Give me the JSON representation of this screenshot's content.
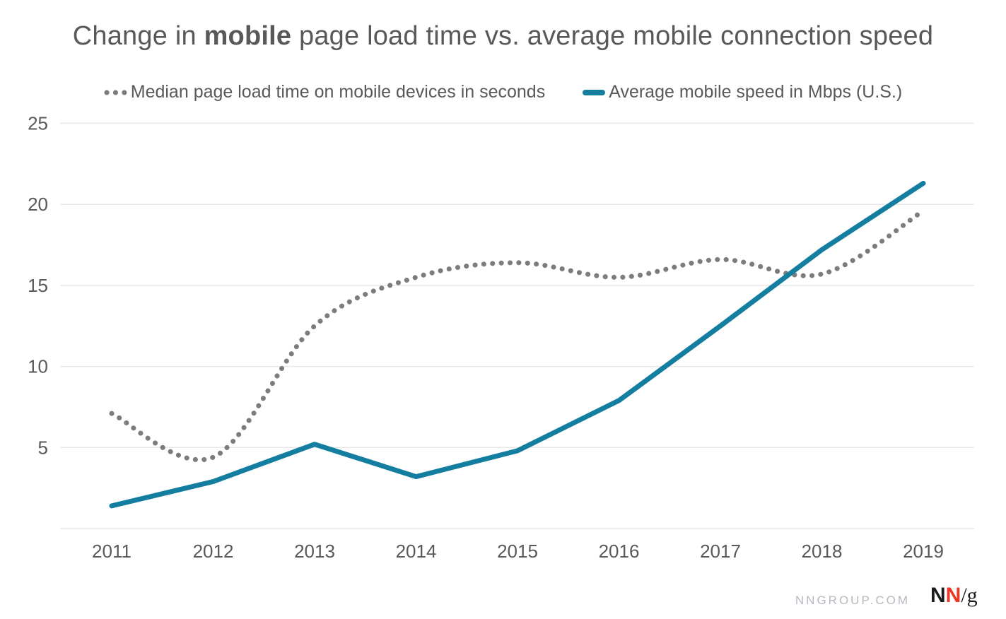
{
  "title": {
    "prefix": "Change in ",
    "bold_word": "mobile",
    "suffix": " page load time vs. average mobile connection speed"
  },
  "chart_data": {
    "type": "line",
    "title": "Change in mobile page load time vs. average mobile connection speed",
    "x": [
      2011,
      2012,
      2013,
      2014,
      2015,
      2016,
      2017,
      2018,
      2019
    ],
    "series": [
      {
        "name": "Median page load time on mobile devices in seconds",
        "style": "dotted",
        "color": "#7c7c7c",
        "values": [
          7.1,
          4.4,
          12.5,
          15.5,
          16.4,
          15.5,
          16.6,
          15.7,
          19.6
        ]
      },
      {
        "name": "Average mobile speed in Mbps (U.S.)",
        "style": "solid",
        "color": "#137ea0",
        "values": [
          1.4,
          2.9,
          5.2,
          3.2,
          4.8,
          7.9,
          12.5,
          17.2,
          21.3
        ]
      }
    ],
    "xlabel": "",
    "ylabel": "",
    "ylim": [
      0,
      25
    ],
    "yticks": [
      5,
      10,
      15,
      20,
      25
    ],
    "grid": "horizontal",
    "legend_position": "top"
  },
  "footer": {
    "site": "NNGROUP.COM",
    "logo": {
      "n1": "N",
      "n2": "N",
      "slash_g": "/g"
    }
  },
  "colors": {
    "text_gray": "#595959",
    "grid_gray": "#e7e7e7",
    "dotted_gray": "#7c7c7c",
    "accent_teal": "#137ea0",
    "footer_gray": "#b5bac1",
    "logo_red": "#ee3524",
    "logo_black": "#1c1c1c"
  }
}
